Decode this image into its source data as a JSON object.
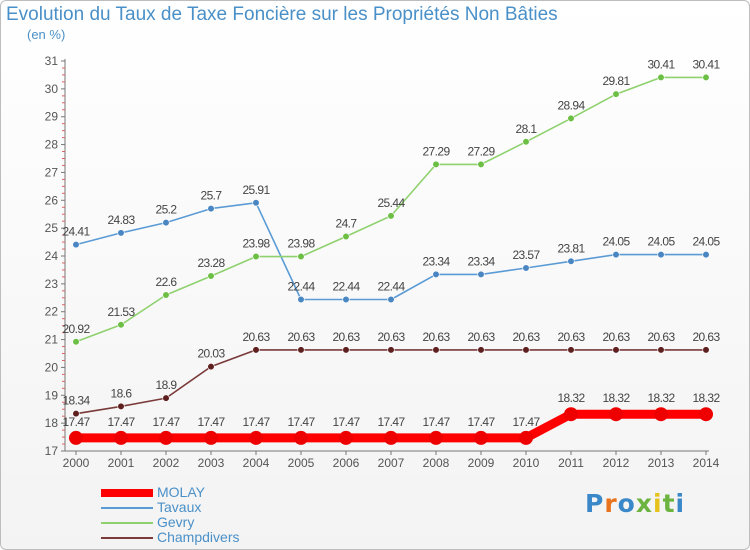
{
  "header": {
    "title": "Evolution du Taux de Taxe Foncière sur les Propriétés Non Bâties",
    "unit": "(en %)"
  },
  "logo": {
    "text": "Proxiti",
    "colors": [
      "#3b88c9",
      "#e8731c",
      "#3b88c9",
      "#6db33f",
      "#e5c21c",
      "#6db33f",
      "#3b88c9"
    ]
  },
  "chart_data": {
    "type": "line",
    "title": "Evolution du Taux de Taxe Foncière sur les Propriétés Non Bâties",
    "ylabel": "(en %)",
    "xlabel": "",
    "x": [
      2000,
      2001,
      2002,
      2003,
      2004,
      2005,
      2006,
      2007,
      2008,
      2009,
      2010,
      2011,
      2012,
      2013,
      2014
    ],
    "x_tick_labels": [
      "2000",
      "2001",
      "2002",
      "2003",
      "2004",
      "2005",
      "2006",
      "2007",
      "2008",
      "2009",
      "2010",
      "2011",
      "2012",
      "2013",
      "2014"
    ],
    "ylim": [
      17,
      31
    ],
    "y_ticks": [
      17,
      18,
      19,
      20,
      21,
      22,
      23,
      24,
      25,
      26,
      27,
      28,
      29,
      30,
      31
    ],
    "y_tick_labels": [
      "17",
      "18",
      "19",
      "20",
      "21",
      "22",
      "23",
      "24",
      "25",
      "26",
      "27",
      "28",
      "29",
      "30",
      "31"
    ],
    "grid": false,
    "legend_position": "bottom-left",
    "series": [
      {
        "name": "MOLAY",
        "color": "#ff0000",
        "point_color": "#ee0000",
        "thick": true,
        "values": [
          17.47,
          17.47,
          17.47,
          17.47,
          17.47,
          17.47,
          17.47,
          17.47,
          17.47,
          17.47,
          17.47,
          18.32,
          18.32,
          18.32,
          18.32
        ],
        "labels": [
          "17.47",
          "17.47",
          "17.47",
          "17.47",
          "17.47",
          "17.47",
          "17.47",
          "17.47",
          "17.47",
          "17.47",
          "17.47",
          "18.32",
          "18.32",
          "18.32",
          "18.32"
        ]
      },
      {
        "name": "Tavaux",
        "color": "#5b9bd5",
        "point_color": "#4a86c2",
        "thick": false,
        "values": [
          24.41,
          24.83,
          25.2,
          25.7,
          25.91,
          22.44,
          22.44,
          22.44,
          23.34,
          23.34,
          23.57,
          23.81,
          24.05,
          24.05,
          24.05
        ],
        "labels": [
          "24.41",
          "24.83",
          "25.2",
          "25.7",
          "25.91",
          "22.44",
          "22.44",
          "22.44",
          "23.34",
          "23.34",
          "23.57",
          "23.81",
          "24.05",
          "24.05",
          "24.05"
        ]
      },
      {
        "name": "Gevry",
        "color": "#8fd16e",
        "point_color": "#6cbf44",
        "thick": false,
        "values": [
          20.92,
          21.53,
          22.6,
          23.28,
          23.98,
          23.98,
          24.7,
          25.44,
          27.29,
          27.29,
          28.1,
          28.94,
          29.81,
          30.41,
          30.41
        ],
        "labels": [
          "20.92",
          "21.53",
          "22.6",
          "23.28",
          "23.98",
          "23.98",
          "24.7",
          "25.44",
          "27.29",
          "27.29",
          "28.1",
          "28.94",
          "29.81",
          "30.41",
          "30.41"
        ]
      },
      {
        "name": "Champdivers",
        "color": "#7a3a3a",
        "point_color": "#5e1f1f",
        "thick": false,
        "values": [
          18.34,
          18.6,
          18.9,
          20.03,
          20.63,
          20.63,
          20.63,
          20.63,
          20.63,
          20.63,
          20.63,
          20.63,
          20.63,
          20.63,
          20.63
        ],
        "labels": [
          "18.34",
          "18.6",
          "18.9",
          "20.03",
          "20.63",
          "20.63",
          "20.63",
          "20.63",
          "20.63",
          "20.63",
          "20.63",
          "20.63",
          "20.63",
          "20.63",
          "20.63"
        ]
      }
    ]
  }
}
